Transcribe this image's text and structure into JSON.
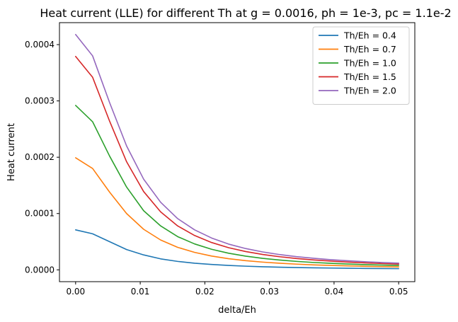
{
  "chart_data": {
    "type": "line",
    "title": "Heat current (LLE) for different Th at g = 0.0016, ph = 1e-3, pc = 1.1e-2",
    "xlabel": "delta/Eh",
    "ylabel": "Heat current",
    "xlim": [
      -0.0025,
      0.0525
    ],
    "ylim": [
      -2.1e-05,
      0.000439
    ],
    "xticks": [
      0.0,
      0.01,
      0.02,
      0.03,
      0.04,
      0.05
    ],
    "xtick_labels": [
      "0.00",
      "0.01",
      "0.02",
      "0.03",
      "0.04",
      "0.05"
    ],
    "yticks": [
      0.0,
      0.0001,
      0.0002,
      0.0003,
      0.0004
    ],
    "ytick_labels": [
      "0.0000",
      "0.0001",
      "0.0002",
      "0.0003",
      "0.0004"
    ],
    "grid": false,
    "legend_position": "top-right",
    "x": [
      0.0,
      0.00263,
      0.00526,
      0.00789,
      0.01053,
      0.01316,
      0.01579,
      0.01842,
      0.02105,
      0.02368,
      0.02632,
      0.02895,
      0.03158,
      0.03421,
      0.03684,
      0.03947,
      0.04211,
      0.04474,
      0.04737,
      0.05
    ],
    "series": [
      {
        "name": "Th/Eh = 0.4",
        "color": "#1f77b4",
        "values": [
          7.1e-05,
          6.4e-05,
          5e-05,
          3.6e-05,
          2.65e-05,
          1.95e-05,
          1.5e-05,
          1.18e-05,
          9.5e-06,
          7.8e-06,
          6.5e-06,
          5.5e-06,
          4.7e-06,
          4.1e-06,
          3.6e-06,
          3.2e-06,
          2.8e-06,
          2.5e-06,
          2.3e-06,
          2.1e-06
        ]
      },
      {
        "name": "Th/Eh = 0.7",
        "color": "#ff7f0e",
        "values": [
          0.000199,
          0.00018,
          0.000138,
          0.0001,
          7.2e-05,
          5.3e-05,
          4e-05,
          3.1e-05,
          2.45e-05,
          1.98e-05,
          1.63e-05,
          1.37e-05,
          1.17e-05,
          1.01e-05,
          8.8e-06,
          7.8e-06,
          7e-06,
          6.3e-06,
          5.7e-06,
          5.2e-06
        ]
      },
      {
        "name": "Th/Eh = 1.0",
        "color": "#2ca02c",
        "values": [
          0.000292,
          0.000263,
          0.000202,
          0.000147,
          0.000105,
          7.8e-05,
          5.9e-05,
          4.6e-05,
          3.65e-05,
          2.95e-05,
          2.43e-05,
          2.04e-05,
          1.74e-05,
          1.5e-05,
          1.31e-05,
          1.16e-05,
          1.03e-05,
          9.3e-06,
          8.4e-06,
          7.7e-06
        ]
      },
      {
        "name": "Th/Eh = 1.5",
        "color": "#d62728",
        "values": [
          0.000379,
          0.000342,
          0.000264,
          0.000192,
          0.000139,
          0.000103,
          7.8e-05,
          6.1e-05,
          4.85e-05,
          3.93e-05,
          3.25e-05,
          2.73e-05,
          2.33e-05,
          2.01e-05,
          1.76e-05,
          1.55e-05,
          1.38e-05,
          1.24e-05,
          1.12e-05,
          1.02e-05
        ]
      },
      {
        "name": "Th/Eh = 2.0",
        "color": "#9467bd",
        "values": [
          0.000418,
          0.00038,
          0.000297,
          0.00022,
          0.000161,
          0.00012,
          9.1e-05,
          7.1e-05,
          5.65e-05,
          4.57e-05,
          3.78e-05,
          3.18e-05,
          2.71e-05,
          2.34e-05,
          2.05e-05,
          1.81e-05,
          1.61e-05,
          1.45e-05,
          1.31e-05,
          1.19e-05
        ]
      }
    ]
  }
}
